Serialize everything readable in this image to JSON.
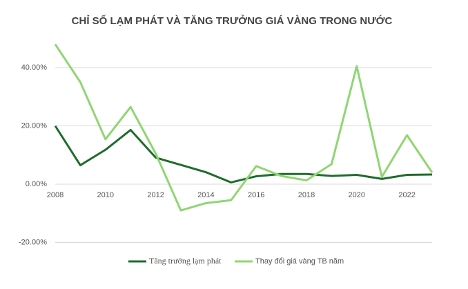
{
  "chart_data": {
    "type": "line",
    "title": "CHỈ SỐ LẠM PHÁT VÀ TĂNG TRƯỞNG GIÁ VÀNG TRONG NƯỚC",
    "x": [
      2008,
      2009,
      2010,
      2011,
      2012,
      2013,
      2014,
      2015,
      2016,
      2017,
      2018,
      2019,
      2020,
      2021,
      2022,
      2023
    ],
    "series": [
      {
        "name": "Tăng trưởng lạm phát",
        "color": "#1f6b2c",
        "values": [
          20.0,
          6.5,
          11.8,
          18.6,
          9.1,
          6.6,
          4.1,
          0.6,
          2.7,
          3.5,
          3.5,
          2.8,
          3.2,
          1.8,
          3.2,
          3.3
        ]
      },
      {
        "name": "Thay đổi giá vàng TB năm",
        "color": "#8fd672",
        "values": [
          48.0,
          35.0,
          15.4,
          26.5,
          10.5,
          -9.0,
          -6.5,
          -5.5,
          6.2,
          2.8,
          1.3,
          6.9,
          40.5,
          2.5,
          16.8,
          4.0
        ]
      }
    ],
    "xlim": [
      2008,
      2023
    ],
    "xticks": [
      2008,
      2010,
      2012,
      2014,
      2016,
      2018,
      2020,
      2022
    ],
    "ylim": [
      -20,
      50
    ],
    "yticks": [
      {
        "value": -20,
        "label": "-20.00%"
      },
      {
        "value": 0,
        "label": "0.00%"
      },
      {
        "value": 20,
        "label": "20.00%"
      },
      {
        "value": 40,
        "label": "40.00%"
      }
    ],
    "grid": true,
    "legend": "bottom"
  }
}
